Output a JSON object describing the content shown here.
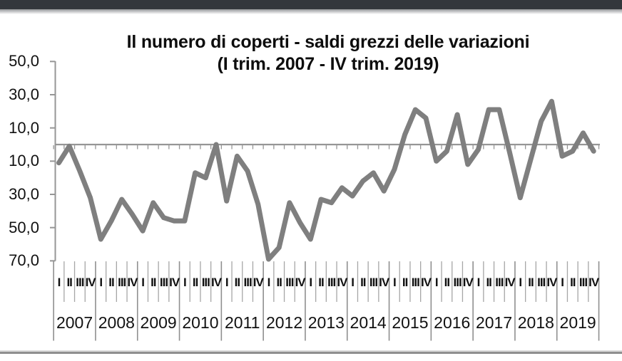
{
  "title": {
    "line1": "Il numero di coperti - saldi grezzi delle variazioni",
    "line2": "(I trim. 2007 - IV trim. 2019)"
  },
  "y_axis": {
    "tick_labels_displayed": [
      "50,0",
      "30,0",
      "10,0",
      "10,0",
      "30,0",
      "50,0",
      "70,0"
    ],
    "tick_values": [
      50,
      30,
      10,
      -10,
      -30,
      -50,
      -70
    ]
  },
  "x_axis": {
    "quarter_labels": [
      "I",
      "II",
      "III",
      "IV"
    ],
    "years": [
      "2007",
      "2008",
      "2009",
      "2010",
      "2011",
      "2012",
      "2013",
      "2014",
      "2015",
      "2016",
      "2017",
      "2018",
      "2019"
    ]
  },
  "colors": {
    "line": "#7f7f7f",
    "axis": "#969696",
    "separator_short": "#a6a6a6",
    "separator_long": "#8f8f8f",
    "topbar": "#33373c",
    "bottom_rule": "#8f8f8f",
    "text": "#111111"
  },
  "chart_data": {
    "type": "line",
    "title": "Il numero di coperti - saldi grezzi delle variazioni",
    "subtitle": "(I trim. 2007 - IV trim. 2019)",
    "ylim": [
      -70,
      50
    ],
    "ytick_step": 20,
    "zero_axis_line": true,
    "legend": "none",
    "line_color": "#7f7f7f",
    "categories": [
      "2007 I",
      "2007 II",
      "2007 III",
      "2007 IV",
      "2008 I",
      "2008 II",
      "2008 III",
      "2008 IV",
      "2009 I",
      "2009 II",
      "2009 III",
      "2009 IV",
      "2010 I",
      "2010 II",
      "2010 III",
      "2010 IV",
      "2011 I",
      "2011 II",
      "2011 III",
      "2011 IV",
      "2012 I",
      "2012 II",
      "2012 III",
      "2012 IV",
      "2013 I",
      "2013 II",
      "2013 III",
      "2013 IV",
      "2014 I",
      "2014 II",
      "2014 III",
      "2014 IV",
      "2015 I",
      "2015 II",
      "2015 III",
      "2015 IV",
      "2016 I",
      "2016 II",
      "2016 III",
      "2016 IV",
      "2017 I",
      "2017 II",
      "2017 III",
      "2017 IV",
      "2018 I",
      "2018 II",
      "2018 III",
      "2018 IV",
      "2019 I",
      "2019 II",
      "2019 III",
      "2019 IV"
    ],
    "values": [
      -11,
      -1,
      -16,
      -32,
      -57,
      -46,
      -33,
      -42,
      -52,
      -35,
      -44,
      -46,
      -46,
      -17,
      -20,
      0,
      -34,
      -7,
      -16,
      -36,
      -69,
      -62,
      -35,
      -47,
      -57,
      -33,
      -35,
      -26,
      -31,
      -22,
      -17,
      -28,
      -15,
      6,
      21,
      16,
      -10,
      -4,
      18,
      -12,
      -3,
      21,
      21,
      -5,
      -32,
      -9,
      14,
      26,
      -7,
      -4,
      7,
      -4
    ]
  }
}
